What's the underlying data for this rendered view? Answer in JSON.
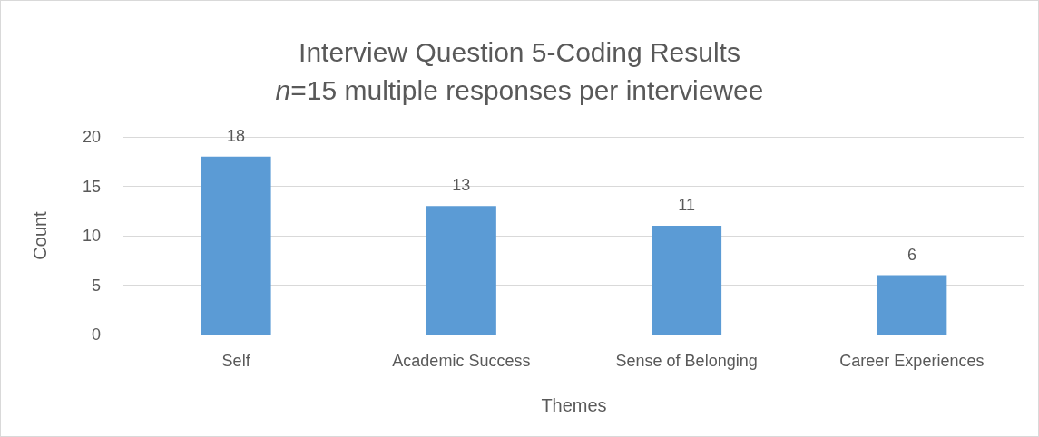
{
  "chart_data": {
    "type": "bar",
    "title": "Interview Question 5-Coding Results",
    "subtitle": "n=15 multiple responses per interviewee",
    "xlabel": "Themes",
    "ylabel": "Count",
    "categories": [
      "Self",
      "Academic Success",
      "Sense of Belonging",
      "Career Experiences"
    ],
    "values": [
      18,
      13,
      11,
      6
    ],
    "color": "#5b9bd5",
    "ylim": [
      0,
      20
    ],
    "yticks": [
      0,
      5,
      10,
      15,
      20
    ],
    "grid": "y",
    "data_labels": true
  }
}
